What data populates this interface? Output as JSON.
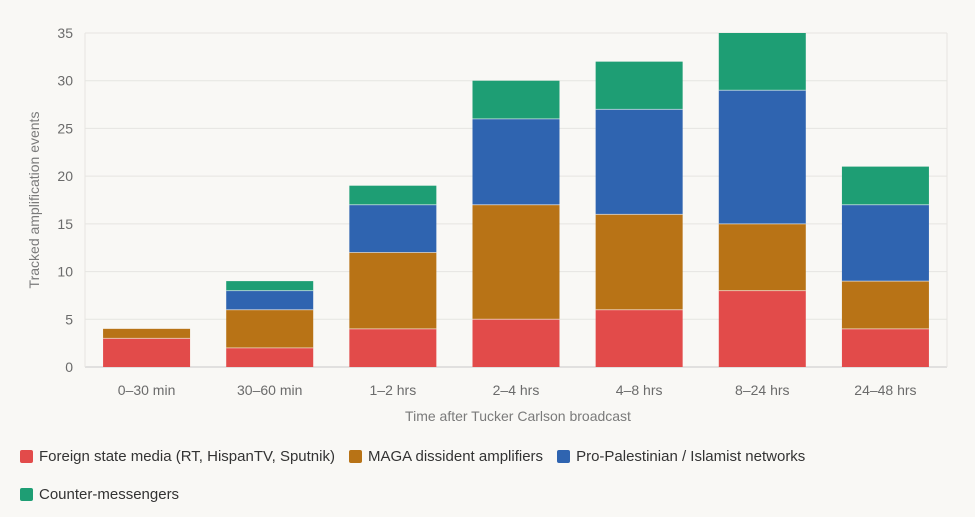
{
  "chart_data": {
    "type": "bar",
    "stacked": true,
    "title": "",
    "xlabel": "Time after Tucker Carlson broadcast",
    "ylabel": "Tracked amplification events",
    "ylim": [
      0,
      35
    ],
    "yticks": [
      0,
      5,
      10,
      15,
      20,
      25,
      30,
      35
    ],
    "grid": true,
    "legend_position": "bottom",
    "categories": [
      "0–30 min",
      "30–60 min",
      "1–2 hrs",
      "2–4 hrs",
      "4–8 hrs",
      "8–24 hrs",
      "24–48 hrs"
    ],
    "series": [
      {
        "name": "Foreign state media (RT, HispanTV, Sputnik)",
        "color": "#e24b4a",
        "values": [
          3,
          2,
          4,
          5,
          6,
          8,
          4
        ]
      },
      {
        "name": "MAGA dissident amplifiers",
        "color": "#b87316",
        "values": [
          1,
          4,
          8,
          12,
          10,
          7,
          5
        ]
      },
      {
        "name": "Pro-Palestinian / Islamist networks",
        "color": "#2f64b0",
        "values": [
          0,
          2,
          5,
          9,
          11,
          14,
          8
        ]
      },
      {
        "name": "Counter-messengers",
        "color": "#1e9e74",
        "values": [
          0,
          1,
          2,
          4,
          5,
          6,
          4
        ]
      }
    ]
  }
}
